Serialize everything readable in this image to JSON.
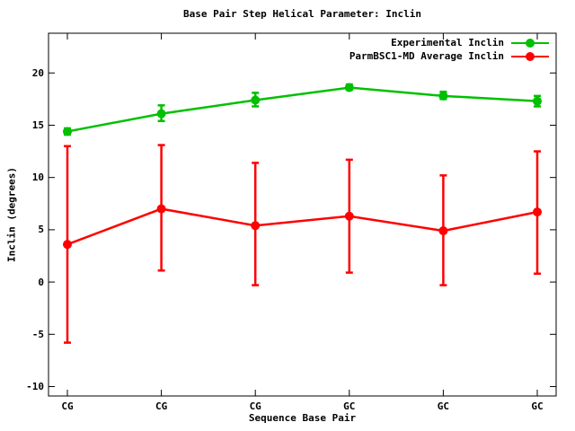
{
  "chart_data": {
    "type": "line",
    "title": "Base Pair Step Helical Parameter: Inclin",
    "xlabel": "Sequence Base Pair",
    "ylabel": "Inclin (degrees)",
    "categories": [
      "CG",
      "CG",
      "CG",
      "GC",
      "GC",
      "GC"
    ],
    "ylim": [
      -10.9,
      23.8
    ],
    "yticks": [
      -10,
      -5,
      0,
      5,
      10,
      15,
      20
    ],
    "grid": false,
    "legend_position": "top-right-inside",
    "background_color": "#ffffff",
    "axis_color": "#000000",
    "series": [
      {
        "name": "Experimental Inclin",
        "color": "#00c000",
        "marker": "filled-circle",
        "values": [
          14.4,
          16.1,
          17.4,
          18.6,
          17.8,
          17.3
        ],
        "err_low": [
          14.1,
          15.4,
          16.8,
          18.4,
          17.5,
          16.8
        ],
        "err_high": [
          14.7,
          16.9,
          18.1,
          18.9,
          18.2,
          17.8
        ]
      },
      {
        "name": "ParmBSC1-MD Average Inclin",
        "color": "#ff0000",
        "marker": "filled-circle",
        "values": [
          3.6,
          7.0,
          5.4,
          6.3,
          4.9,
          6.7
        ],
        "err_low": [
          -5.8,
          1.1,
          -0.3,
          0.9,
          -0.3,
          0.8
        ],
        "err_high": [
          13.0,
          13.1,
          11.4,
          11.7,
          10.2,
          12.5
        ]
      }
    ]
  }
}
